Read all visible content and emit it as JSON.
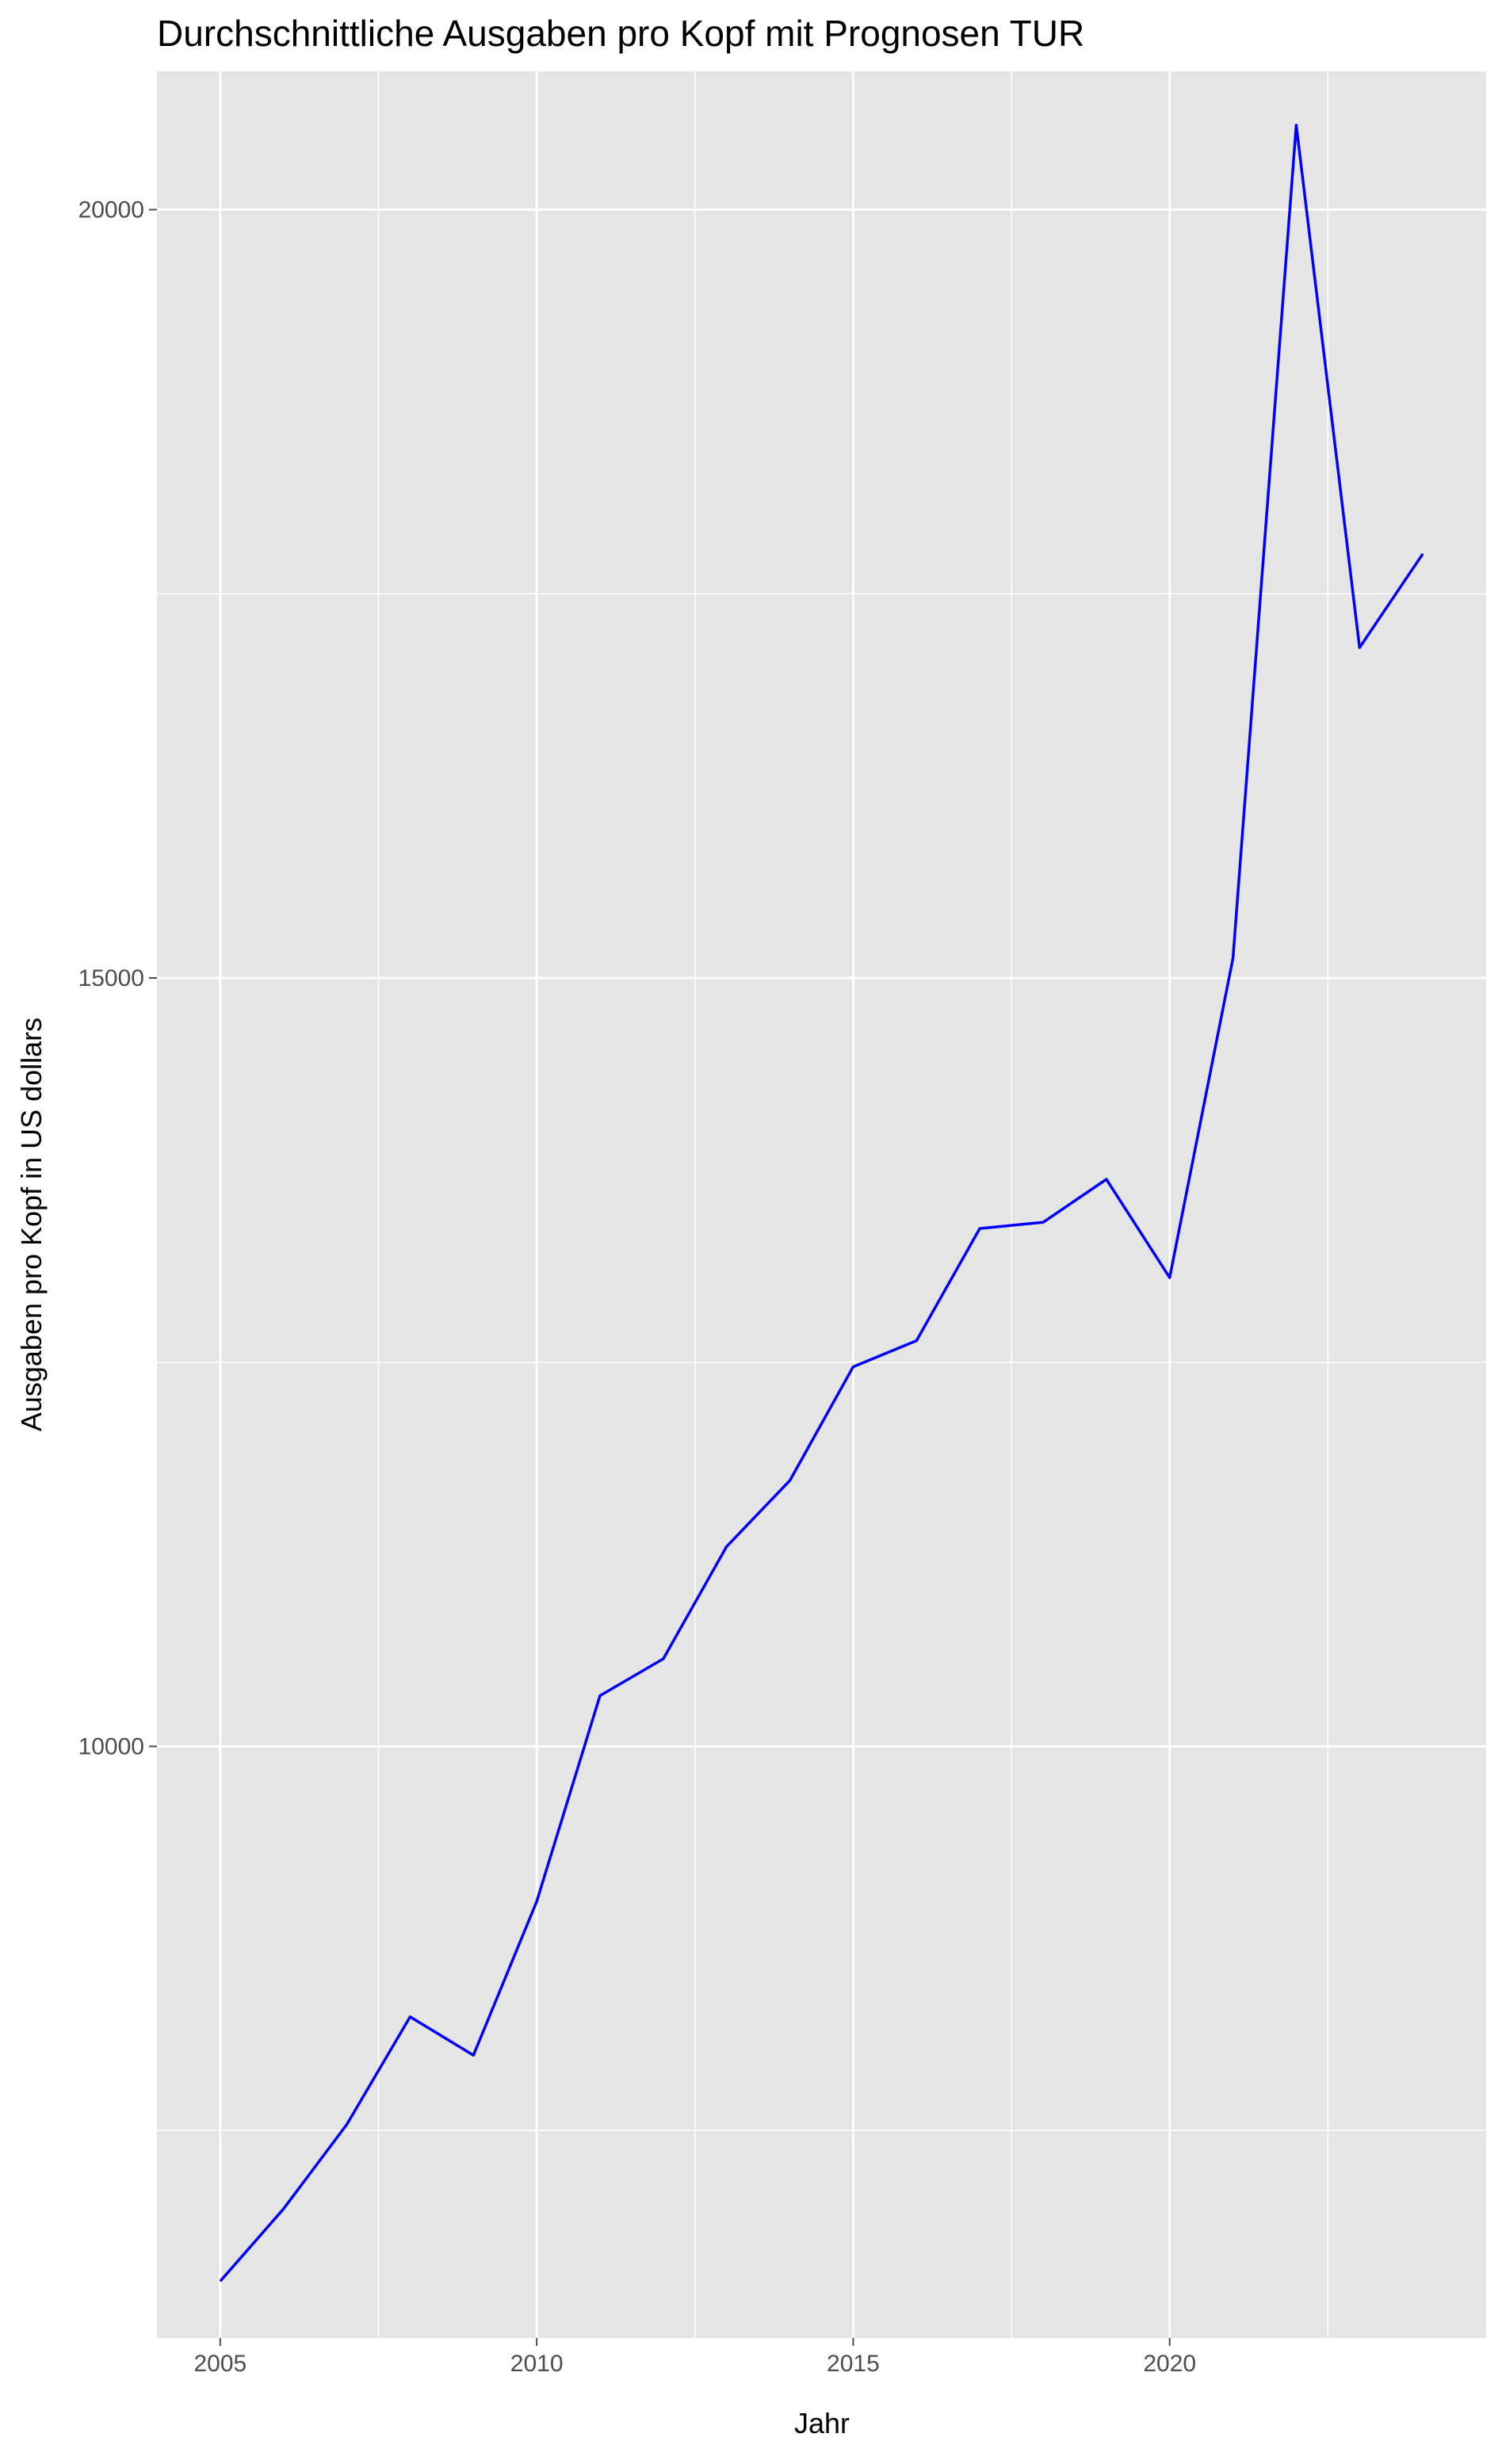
{
  "chart_data": {
    "type": "line",
    "title": "Durchschnittliche Ausgaben pro Kopf mit Prognosen TUR",
    "xlabel": "Jahr",
    "ylabel": "Ausgaben pro Kopf in US dollars",
    "xlim": [
      2004,
      2025
    ],
    "ylim": [
      6150,
      20900
    ],
    "x_ticks": [
      2005,
      2010,
      2015,
      2020
    ],
    "x_minor_ticks": [
      2007.5,
      2012.5,
      2017.5,
      2022.5
    ],
    "y_ticks": [
      10000,
      15000,
      20000
    ],
    "y_minor_ticks": [
      7500,
      12500,
      17500
    ],
    "grid": true,
    "legend": "none",
    "colors": {
      "line": "#0000ff",
      "panel": "#e5e5e5",
      "grid": "#ffffff",
      "ticks": "#4d4d4d"
    },
    "x": [
      2005,
      2006,
      2007,
      2008,
      2009,
      2010,
      2011,
      2012,
      2013,
      2014,
      2015,
      2016,
      2017,
      2018,
      2019,
      2020,
      2021,
      2022,
      2023,
      2024
    ],
    "series": [
      {
        "values": [
          6520,
          6990,
          7540,
          8240,
          7990,
          8990,
          10330,
          10570,
          11300,
          11730,
          12470,
          12640,
          13370,
          13410,
          13690,
          13050,
          15130,
          20550,
          17150,
          17760
        ]
      }
    ]
  }
}
